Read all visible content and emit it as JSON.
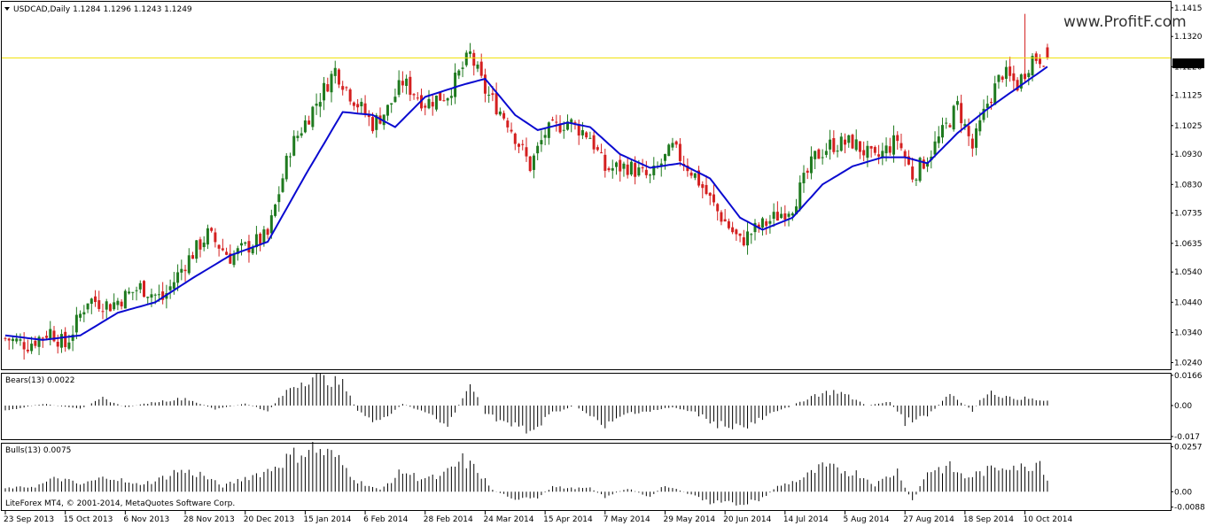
{
  "window": {
    "header_text": "USDCAD,Daily  1.1284 1.1296 1.1243 1.1249",
    "watermark": "www.ProfitF.com",
    "footer": "LiteForex MT4, © 2001-2014, MetaQuotes Software Corp."
  },
  "chart_data": [
    {
      "type": "candlestick",
      "title": "USDCAD,Daily",
      "symbol": "USDCAD",
      "timeframe": "Daily",
      "ohlc_last": {
        "open": 1.1284,
        "high": 1.1296,
        "low": 1.1243,
        "close": 1.1249
      },
      "current_price_label": "1.1249",
      "current_price_line": 1.1249,
      "ylim": [
        1.0215,
        1.1435
      ],
      "y_ticks": [
        "1.1415",
        "1.1320",
        "1.1220",
        "1.1125",
        "1.1025",
        "1.0930",
        "1.0830",
        "1.0735",
        "1.0635",
        "1.0540",
        "1.0440",
        "1.0340",
        "1.0240"
      ],
      "x_ticks": [
        "23 Sep 2013",
        "15 Oct 2013",
        "6 Nov 2013",
        "28 Nov 2013",
        "20 Dec 2013",
        "15 Jan 2014",
        "6 Feb 2014",
        "28 Feb 2014",
        "24 Mar 2014",
        "15 Apr 2014",
        "7 May 2014",
        "29 May 2014",
        "20 Jun 2014",
        "14 Jul 2014",
        "5 Aug 2014",
        "27 Aug 2014",
        "18 Sep 2014",
        "10 Oct 2014"
      ],
      "x_tick_index": [
        0,
        16,
        32,
        48,
        64,
        80,
        96,
        112,
        128,
        144,
        160,
        176,
        192,
        208,
        224,
        240,
        256,
        272
      ],
      "close_path": [
        [
          0,
          1.032
        ],
        [
          6,
          1.03
        ],
        [
          12,
          1.0345
        ],
        [
          16,
          1.0295
        ],
        [
          22,
          1.045
        ],
        [
          28,
          1.043
        ],
        [
          36,
          1.049
        ],
        [
          42,
          1.045
        ],
        [
          48,
          1.057
        ],
        [
          54,
          1.0665
        ],
        [
          60,
          1.059
        ],
        [
          64,
          1.062
        ],
        [
          70,
          1.066
        ],
        [
          76,
          1.095
        ],
        [
          82,
          1.108
        ],
        [
          88,
          1.121
        ],
        [
          92,
          1.113
        ],
        [
          98,
          1.103
        ],
        [
          102,
          1.108
        ],
        [
          106,
          1.117
        ],
        [
          112,
          1.11
        ],
        [
          118,
          1.113
        ],
        [
          124,
          1.126
        ],
        [
          128,
          1.114
        ],
        [
          134,
          1.104
        ],
        [
          140,
          1.089
        ],
        [
          144,
          1.1
        ],
        [
          150,
          1.104
        ],
        [
          156,
          1.099
        ],
        [
          160,
          1.088
        ],
        [
          166,
          1.089
        ],
        [
          172,
          1.085
        ],
        [
          178,
          1.095
        ],
        [
          184,
          1.086
        ],
        [
          190,
          1.074
        ],
        [
          196,
          1.064
        ],
        [
          200,
          1.068
        ],
        [
          204,
          1.071
        ],
        [
          210,
          1.076
        ],
        [
          216,
          1.092
        ],
        [
          220,
          1.096
        ],
        [
          226,
          1.097
        ],
        [
          232,
          1.091
        ],
        [
          238,
          1.098
        ],
        [
          242,
          1.086
        ],
        [
          246,
          1.092
        ],
        [
          250,
          1.1
        ],
        [
          254,
          1.109
        ],
        [
          258,
          1.095
        ],
        [
          262,
          1.11
        ],
        [
          266,
          1.12
        ],
        [
          270,
          1.116
        ],
        [
          274,
          1.125
        ],
        [
          278,
          1.1249
        ]
      ],
      "ma_path": [
        [
          0,
          1.033
        ],
        [
          10,
          1.0315
        ],
        [
          20,
          1.033
        ],
        [
          30,
          1.0405
        ],
        [
          40,
          1.044
        ],
        [
          50,
          1.052
        ],
        [
          60,
          1.0595
        ],
        [
          70,
          1.064
        ],
        [
          80,
          1.086
        ],
        [
          90,
          1.107
        ],
        [
          98,
          1.106
        ],
        [
          104,
          1.102
        ],
        [
          112,
          1.112
        ],
        [
          122,
          1.116
        ],
        [
          128,
          1.118
        ],
        [
          136,
          1.106
        ],
        [
          142,
          1.101
        ],
        [
          150,
          1.1035
        ],
        [
          156,
          1.102
        ],
        [
          164,
          1.093
        ],
        [
          172,
          1.0885
        ],
        [
          180,
          1.09
        ],
        [
          188,
          1.085
        ],
        [
          196,
          1.072
        ],
        [
          202,
          1.068
        ],
        [
          210,
          1.072
        ],
        [
          218,
          1.083
        ],
        [
          226,
          1.089
        ],
        [
          234,
          1.092
        ],
        [
          240,
          1.092
        ],
        [
          246,
          1.09
        ],
        [
          254,
          1.1
        ],
        [
          262,
          1.108
        ],
        [
          270,
          1.115
        ],
        [
          278,
          1.122
        ]
      ]
    },
    {
      "type": "histogram",
      "title": "Bears(13) 0.0022",
      "name": "Bears(13)",
      "last_value": 0.0022,
      "ylim": [
        -0.0185,
        0.0175
      ],
      "y_ticks": [
        "0.0166",
        "0.00",
        "-0.017"
      ],
      "path": [
        [
          0,
          -0.003
        ],
        [
          10,
          0.001
        ],
        [
          20,
          -0.002
        ],
        [
          26,
          0.004
        ],
        [
          32,
          -0.001
        ],
        [
          40,
          0.002
        ],
        [
          48,
          0.004
        ],
        [
          56,
          -0.002
        ],
        [
          64,
          0.001
        ],
        [
          70,
          -0.003
        ],
        [
          76,
          0.01
        ],
        [
          82,
          0.016
        ],
        [
          90,
          0.012
        ],
        [
          94,
          -0.003
        ],
        [
          100,
          -0.01
        ],
        [
          106,
          0.001
        ],
        [
          112,
          -0.004
        ],
        [
          118,
          -0.011
        ],
        [
          124,
          0.012
        ],
        [
          128,
          -0.004
        ],
        [
          134,
          -0.01
        ],
        [
          140,
          -0.015
        ],
        [
          146,
          -0.004
        ],
        [
          152,
          0.0
        ],
        [
          156,
          -0.006
        ],
        [
          160,
          -0.012
        ],
        [
          166,
          -0.004
        ],
        [
          172,
          -0.003
        ],
        [
          178,
          -0.001
        ],
        [
          184,
          -0.004
        ],
        [
          190,
          -0.01
        ],
        [
          198,
          -0.012
        ],
        [
          204,
          -0.005
        ],
        [
          210,
          0.0
        ],
        [
          216,
          0.006
        ],
        [
          222,
          0.008
        ],
        [
          230,
          0.0
        ],
        [
          236,
          0.002
        ],
        [
          240,
          -0.009
        ],
        [
          246,
          -0.006
        ],
        [
          252,
          0.007
        ],
        [
          258,
          -0.003
        ],
        [
          262,
          0.008
        ],
        [
          268,
          0.004
        ],
        [
          272,
          0.004
        ],
        [
          278,
          0.0022
        ]
      ]
    },
    {
      "type": "histogram",
      "title": "Bulls(13) 0.0075",
      "name": "Bulls(13)",
      "last_value": 0.0075,
      "ylim": [
        -0.0105,
        0.0275
      ],
      "y_ticks": [
        "0.0257",
        "0.00",
        "-0.0088"
      ],
      "path": [
        [
          0,
          0.002
        ],
        [
          8,
          0.003
        ],
        [
          14,
          0.008
        ],
        [
          20,
          0.004
        ],
        [
          28,
          0.009
        ],
        [
          34,
          0.004
        ],
        [
          40,
          0.006
        ],
        [
          46,
          0.012
        ],
        [
          52,
          0.01
        ],
        [
          58,
          0.003
        ],
        [
          64,
          0.008
        ],
        [
          70,
          0.012
        ],
        [
          76,
          0.02
        ],
        [
          82,
          0.025
        ],
        [
          88,
          0.02
        ],
        [
          94,
          0.006
        ],
        [
          100,
          0.001
        ],
        [
          106,
          0.012
        ],
        [
          110,
          0.008
        ],
        [
          116,
          0.008
        ],
        [
          122,
          0.018
        ],
        [
          126,
          0.012
        ],
        [
          130,
          0.001
        ],
        [
          136,
          -0.004
        ],
        [
          142,
          -0.004
        ],
        [
          146,
          0.003
        ],
        [
          150,
          0.002
        ],
        [
          156,
          0.002
        ],
        [
          160,
          -0.003
        ],
        [
          166,
          0.002
        ],
        [
          172,
          -0.003
        ],
        [
          176,
          0.004
        ],
        [
          182,
          -0.001
        ],
        [
          188,
          -0.006
        ],
        [
          196,
          -0.007
        ],
        [
          202,
          -0.004
        ],
        [
          206,
          0.003
        ],
        [
          212,
          0.007
        ],
        [
          218,
          0.014
        ],
        [
          224,
          0.012
        ],
        [
          228,
          0.01
        ],
        [
          232,
          0.004
        ],
        [
          238,
          0.012
        ],
        [
          242,
          -0.006
        ],
        [
          246,
          0.012
        ],
        [
          252,
          0.014
        ],
        [
          256,
          0.008
        ],
        [
          262,
          0.012
        ],
        [
          268,
          0.016
        ],
        [
          272,
          0.013
        ],
        [
          276,
          0.018
        ],
        [
          278,
          0.0075
        ]
      ]
    }
  ],
  "colors": {
    "background": "#ffffff",
    "bull_candle": "#1f7a1f",
    "bear_candle": "#d42020",
    "moving_average": "#0a0ad0",
    "price_line": "#f0e000",
    "histogram": "#000000",
    "price_label_bg": "#000000",
    "price_label_text": "#ffffff"
  },
  "icons": {
    "symbol_menu": "dropdown-triangle-icon"
  }
}
